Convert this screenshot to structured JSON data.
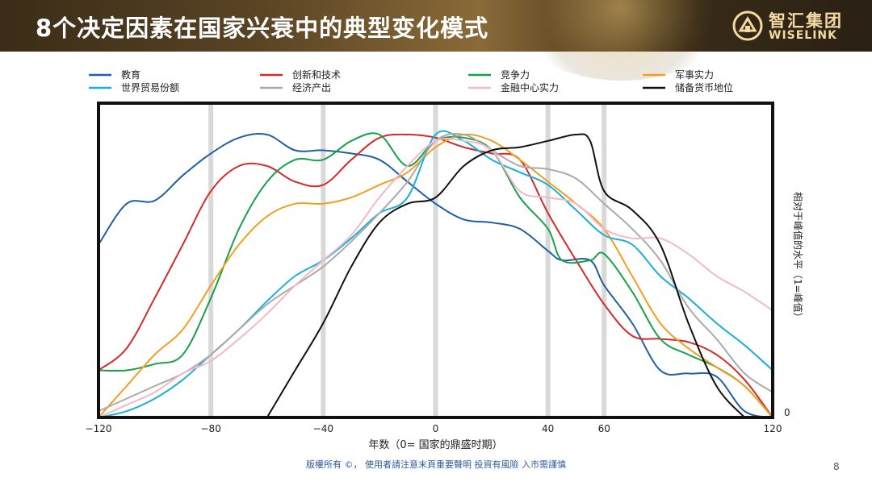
{
  "slide": {
    "title": "8个决定因素在国家兴衰中的典型变化模式",
    "logo_cn": "智汇集团",
    "logo_en": "WISELINK",
    "footer": "版權所有 ©， 使用者請注意末頁重要聲明  投資有風險 入市需謹慎",
    "page_number": "8"
  },
  "chart_data": {
    "type": "line",
    "title": "",
    "xlabel": "年数（0= 国家的鼎盛时期）",
    "ylabel": "相对于峰值的水平（1=峰值）",
    "xlim": [
      -120,
      120
    ],
    "ylim": [
      0,
      1
    ],
    "x_ticks": [
      "−120",
      "−80",
      "−40",
      "0",
      "40",
      "60",
      "120"
    ],
    "x_tick_values": [
      -120,
      -80,
      -40,
      0,
      40,
      60,
      120
    ],
    "y_tick_labels": [
      "0"
    ],
    "vertical_bands": [
      -80,
      -40,
      0,
      40,
      60
    ],
    "legend_position": "top",
    "series": [
      {
        "name": "教育",
        "color": "#1f5fa5",
        "points": [
          [
            -120,
            0.55
          ],
          [
            -110,
            0.68
          ],
          [
            -100,
            0.69
          ],
          [
            -90,
            0.77
          ],
          [
            -80,
            0.84
          ],
          [
            -70,
            0.89
          ],
          [
            -60,
            0.9
          ],
          [
            -50,
            0.85
          ],
          [
            -40,
            0.85
          ],
          [
            -30,
            0.84
          ],
          [
            -20,
            0.82
          ],
          [
            -10,
            0.75
          ],
          [
            0,
            0.68
          ],
          [
            10,
            0.63
          ],
          [
            20,
            0.62
          ],
          [
            30,
            0.6
          ],
          [
            40,
            0.53
          ],
          [
            45,
            0.5
          ],
          [
            55,
            0.5
          ],
          [
            60,
            0.42
          ],
          [
            70,
            0.3
          ],
          [
            80,
            0.15
          ],
          [
            90,
            0.14
          ],
          [
            100,
            0.13
          ],
          [
            110,
            0.02
          ],
          [
            120,
            0.0
          ]
        ]
      },
      {
        "name": "创新和技术",
        "color": "#d42a2a",
        "points": [
          [
            -120,
            0.15
          ],
          [
            -110,
            0.22
          ],
          [
            -100,
            0.38
          ],
          [
            -90,
            0.55
          ],
          [
            -80,
            0.72
          ],
          [
            -70,
            0.8
          ],
          [
            -60,
            0.8
          ],
          [
            -50,
            0.75
          ],
          [
            -40,
            0.74
          ],
          [
            -30,
            0.82
          ],
          [
            -20,
            0.89
          ],
          [
            -10,
            0.9
          ],
          [
            0,
            0.89
          ],
          [
            10,
            0.86
          ],
          [
            20,
            0.84
          ],
          [
            30,
            0.82
          ],
          [
            40,
            0.65
          ],
          [
            50,
            0.5
          ],
          [
            60,
            0.36
          ],
          [
            70,
            0.26
          ],
          [
            80,
            0.25
          ],
          [
            90,
            0.24
          ],
          [
            100,
            0.2
          ],
          [
            110,
            0.12
          ],
          [
            120,
            0.0
          ]
        ]
      },
      {
        "name": "竞争力",
        "color": "#17a04a",
        "points": [
          [
            -120,
            0.15
          ],
          [
            -110,
            0.15
          ],
          [
            -100,
            0.17
          ],
          [
            -90,
            0.2
          ],
          [
            -80,
            0.38
          ],
          [
            -70,
            0.6
          ],
          [
            -60,
            0.75
          ],
          [
            -50,
            0.82
          ],
          [
            -40,
            0.82
          ],
          [
            -30,
            0.88
          ],
          [
            -20,
            0.9
          ],
          [
            -10,
            0.8
          ],
          [
            0,
            0.88
          ],
          [
            10,
            0.89
          ],
          [
            20,
            0.85
          ],
          [
            30,
            0.7
          ],
          [
            40,
            0.6
          ],
          [
            45,
            0.5
          ],
          [
            55,
            0.5
          ],
          [
            60,
            0.52
          ],
          [
            70,
            0.4
          ],
          [
            80,
            0.25
          ],
          [
            90,
            0.2
          ],
          [
            100,
            0.16
          ],
          [
            110,
            0.1
          ],
          [
            120,
            0.0
          ]
        ]
      },
      {
        "name": "军事实力",
        "color": "#f0a020",
        "points": [
          [
            -120,
            0.0
          ],
          [
            -110,
            0.1
          ],
          [
            -100,
            0.2
          ],
          [
            -90,
            0.28
          ],
          [
            -80,
            0.42
          ],
          [
            -70,
            0.55
          ],
          [
            -60,
            0.64
          ],
          [
            -50,
            0.68
          ],
          [
            -40,
            0.68
          ],
          [
            -30,
            0.7
          ],
          [
            -20,
            0.74
          ],
          [
            -10,
            0.78
          ],
          [
            0,
            0.86
          ],
          [
            10,
            0.9
          ],
          [
            20,
            0.88
          ],
          [
            30,
            0.82
          ],
          [
            40,
            0.75
          ],
          [
            50,
            0.68
          ],
          [
            60,
            0.6
          ],
          [
            70,
            0.45
          ],
          [
            80,
            0.3
          ],
          [
            90,
            0.22
          ],
          [
            100,
            0.16
          ],
          [
            110,
            0.1
          ],
          [
            120,
            0.0
          ]
        ]
      },
      {
        "name": "世界贸易份额",
        "color": "#1aafd8",
        "points": [
          [
            -120,
            0.0
          ],
          [
            -110,
            0.02
          ],
          [
            -100,
            0.06
          ],
          [
            -90,
            0.12
          ],
          [
            -80,
            0.2
          ],
          [
            -70,
            0.28
          ],
          [
            -60,
            0.37
          ],
          [
            -50,
            0.45
          ],
          [
            -40,
            0.5
          ],
          [
            -30,
            0.57
          ],
          [
            -20,
            0.65
          ],
          [
            -10,
            0.7
          ],
          [
            0,
            0.9
          ],
          [
            10,
            0.88
          ],
          [
            20,
            0.82
          ],
          [
            30,
            0.78
          ],
          [
            40,
            0.74
          ],
          [
            50,
            0.66
          ],
          [
            60,
            0.58
          ],
          [
            70,
            0.55
          ],
          [
            80,
            0.45
          ],
          [
            90,
            0.38
          ],
          [
            100,
            0.3
          ],
          [
            110,
            0.23
          ],
          [
            120,
            0.15
          ]
        ]
      },
      {
        "name": "经济产出",
        "color": "#aaaaaa",
        "points": [
          [
            -120,
            0.02
          ],
          [
            -110,
            0.06
          ],
          [
            -100,
            0.1
          ],
          [
            -90,
            0.14
          ],
          [
            -80,
            0.2
          ],
          [
            -70,
            0.28
          ],
          [
            -60,
            0.36
          ],
          [
            -50,
            0.42
          ],
          [
            -40,
            0.48
          ],
          [
            -30,
            0.56
          ],
          [
            -20,
            0.65
          ],
          [
            -10,
            0.75
          ],
          [
            0,
            0.88
          ],
          [
            10,
            0.9
          ],
          [
            20,
            0.85
          ],
          [
            30,
            0.8
          ],
          [
            40,
            0.79
          ],
          [
            50,
            0.76
          ],
          [
            60,
            0.68
          ],
          [
            70,
            0.6
          ],
          [
            80,
            0.5
          ],
          [
            90,
            0.35
          ],
          [
            100,
            0.25
          ],
          [
            110,
            0.14
          ],
          [
            120,
            0.08
          ]
        ]
      },
      {
        "name": "金融中心实力",
        "color": "#f2b8c8",
        "points": [
          [
            -120,
            0.0
          ],
          [
            -110,
            0.04
          ],
          [
            -100,
            0.08
          ],
          [
            -90,
            0.14
          ],
          [
            -80,
            0.18
          ],
          [
            -70,
            0.25
          ],
          [
            -60,
            0.33
          ],
          [
            -50,
            0.42
          ],
          [
            -40,
            0.5
          ],
          [
            -30,
            0.58
          ],
          [
            -20,
            0.7
          ],
          [
            -10,
            0.8
          ],
          [
            0,
            0.88
          ],
          [
            10,
            0.88
          ],
          [
            20,
            0.85
          ],
          [
            30,
            0.72
          ],
          [
            40,
            0.7
          ],
          [
            50,
            0.68
          ],
          [
            60,
            0.6
          ],
          [
            70,
            0.57
          ],
          [
            80,
            0.57
          ],
          [
            90,
            0.52
          ],
          [
            100,
            0.45
          ],
          [
            110,
            0.4
          ],
          [
            120,
            0.34
          ]
        ]
      },
      {
        "name": "储备货币地位",
        "color": "#111111",
        "points": [
          [
            -60,
            0.0
          ],
          [
            -50,
            0.15
          ],
          [
            -40,
            0.3
          ],
          [
            -30,
            0.48
          ],
          [
            -20,
            0.62
          ],
          [
            -10,
            0.68
          ],
          [
            0,
            0.7
          ],
          [
            10,
            0.8
          ],
          [
            20,
            0.85
          ],
          [
            30,
            0.86
          ],
          [
            40,
            0.88
          ],
          [
            50,
            0.9
          ],
          [
            55,
            0.88
          ],
          [
            60,
            0.72
          ],
          [
            70,
            0.66
          ],
          [
            80,
            0.55
          ],
          [
            90,
            0.3
          ],
          [
            100,
            0.1
          ],
          [
            110,
            0.0
          ]
        ]
      }
    ]
  }
}
